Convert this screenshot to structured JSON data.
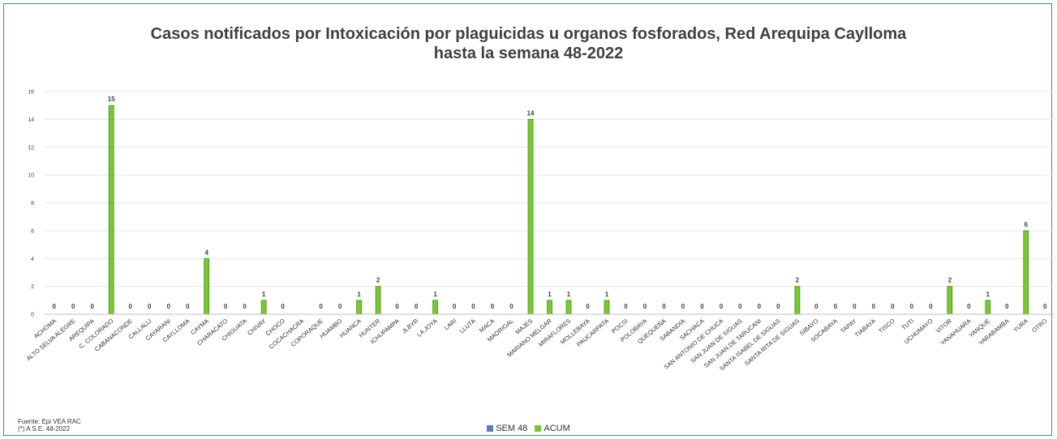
{
  "colors": {
    "sem48": "#5b7fb5",
    "acum": "#77c832",
    "acum_dark": "#4f8f1f",
    "grid": "#e6e6e6",
    "border": "#2f9e5a"
  },
  "chart_data": {
    "type": "bar",
    "title": "Casos notificados por Intoxicación por plaguicidas u organos fosforados, Red Arequipa Caylloma",
    "subtitle": "hasta la semana 48-2022",
    "xlabel": "",
    "ylabel": "",
    "ylim": [
      0,
      16
    ],
    "yticks": [
      "0",
      "2",
      "4",
      "6",
      "8",
      "10",
      "12",
      "14",
      "16"
    ],
    "grid": true,
    "legend_position": "bottom",
    "categories": [
      "ACHOMA",
      "ALTO SELVA ALEGRE",
      "AREQUIPA",
      "C. COLORADO",
      "CABANACONDE",
      "CALLALLI",
      "CAYARANI",
      "CAYLLOMA",
      "CAYMA",
      "CHARACATO",
      "CHIGUATA",
      "CHIVAY",
      "CHOCO",
      "COCACHACRA",
      "COPORAQUE",
      "HUAMBO",
      "HUANCA",
      "HUNTER",
      "ICHUPAMPA",
      "JLBYR",
      "LA JOYA",
      "LARI",
      "LLUTA",
      "MACA",
      "MADRIGAL",
      "MAJES",
      "MARIANO MELGAR",
      "MIRAFLORES",
      "MOLLEBAYA",
      "PAUCARPATA",
      "POCSI",
      "POLOBAYA",
      "QUEQUEÑA",
      "SABANDIA",
      "SACHACA",
      "SAN ANTONIO DE CHUCA",
      "SAN JUAN DE SIGUAS",
      "SAN JUAN DE TARUCANI",
      "SANTA ISABEL DE SIGUAS",
      "SANTA RITA DE SIGUAS",
      "SIBAYO",
      "SOCABAYA",
      "TAPAY",
      "TIABAYA",
      "TISCO",
      "TUTI",
      "UCHUMAYO",
      "VITOR",
      "YANAHUARA",
      "YANQUE",
      "YARABAMBA",
      "YURA",
      "OTRO"
    ],
    "series": [
      {
        "name": "SEM 48",
        "values": [
          0,
          0,
          0,
          0,
          0,
          0,
          0,
          0,
          0,
          0,
          0,
          0,
          0,
          0,
          0,
          0,
          0,
          0,
          0,
          0,
          0,
          0,
          0,
          0,
          0,
          0,
          0,
          0,
          0,
          0,
          0,
          0,
          0,
          0,
          0,
          0,
          0,
          0,
          0,
          0,
          0,
          0,
          0,
          0,
          0,
          0,
          0,
          0,
          0,
          0,
          0,
          0,
          0
        ]
      },
      {
        "name": "ACUM",
        "values": [
          0,
          0,
          0,
          15,
          0,
          0,
          0,
          0,
          4,
          0,
          0,
          1,
          0,
          null,
          0,
          0,
          1,
          2,
          0,
          0,
          1,
          0,
          0,
          0,
          0,
          14,
          1,
          1,
          0,
          1,
          0,
          0,
          0,
          0,
          0,
          0,
          0,
          0,
          0,
          2,
          0,
          0,
          0,
          0,
          0,
          0,
          0,
          2,
          0,
          1,
          0,
          6,
          0
        ]
      }
    ]
  },
  "footer": {
    "source_line1": "Fuente:  Epi VEA RAC",
    "source_line2": "(*) A S.E. 48-2022"
  }
}
